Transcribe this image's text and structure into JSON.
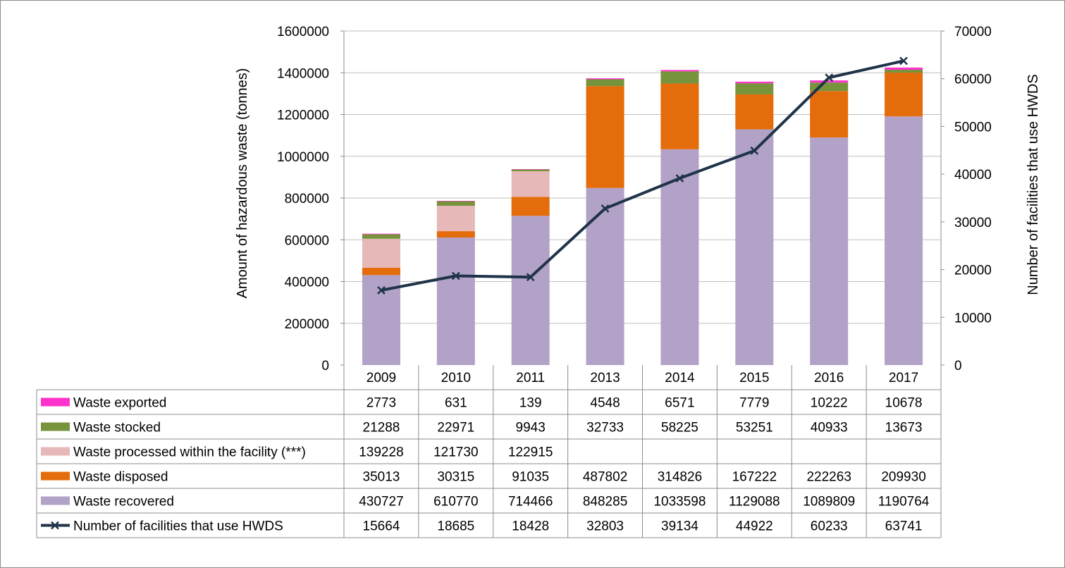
{
  "chart_data": {
    "type": "bar",
    "stacked": true,
    "categories": [
      "2009",
      "2010",
      "2011",
      "2013",
      "2014",
      "2015",
      "2016",
      "2017"
    ],
    "ylabel": "Amount of hazardous waste  (tonnes)",
    "y2label": "Number of facilities that use HWDS",
    "ylim": [
      0,
      1600000
    ],
    "y2lim": [
      0,
      70000
    ],
    "yticks": [
      "0",
      "200000",
      "400000",
      "600000",
      "800000",
      "1000000",
      "1200000",
      "1400000",
      "1600000"
    ],
    "y2ticks": [
      "0",
      "10000",
      "20000",
      "30000",
      "40000",
      "50000",
      "60000",
      "70000"
    ],
    "grid": true,
    "legend": "data-table",
    "series": [
      {
        "name": "Waste exported",
        "color": "#ff33cc",
        "values": [
          2773,
          631,
          139,
          4548,
          6571,
          7779,
          10222,
          10678
        ],
        "labels": [
          "2773",
          "631",
          "139",
          "4548",
          "6571",
          "7779",
          "10222",
          "10678"
        ]
      },
      {
        "name": "Waste stocked",
        "color": "#77933c",
        "values": [
          21288,
          22971,
          9943,
          32733,
          58225,
          53251,
          40933,
          13673
        ],
        "labels": [
          "21288",
          "22971",
          "9943",
          "32733",
          "58225",
          "53251",
          "40933",
          "13673"
        ]
      },
      {
        "name": "Waste processed within the facility (***)",
        "color": "#e6b9b8",
        "values": [
          139228,
          121730,
          122915,
          null,
          null,
          null,
          null,
          null
        ],
        "labels": [
          "139228",
          "121730",
          "122915",
          "",
          "",
          "",
          "",
          ""
        ]
      },
      {
        "name": "Waste disposed",
        "color": "#e46c0a",
        "values": [
          35013,
          30315,
          91035,
          487802,
          314826,
          167222,
          222263,
          209930
        ],
        "labels": [
          "35013",
          "30315",
          "91035",
          "487802",
          "314826",
          "167222",
          "222263",
          "209930"
        ]
      },
      {
        "name": "Waste recovered",
        "color": "#b3a2c7",
        "values": [
          430727,
          610770,
          714466,
          848285,
          1033598,
          1129088,
          1089809,
          1190764
        ],
        "labels": [
          "430727",
          "610770",
          "714466",
          "848285",
          "1033598",
          "1129088",
          "1089809",
          "1190764"
        ]
      },
      {
        "name": "Number of facilities that use HWDS",
        "type": "line",
        "axis": "secondary",
        "color": "#1f3449",
        "values": [
          15664,
          18685,
          18428,
          32803,
          39134,
          44922,
          60233,
          63741
        ],
        "labels": [
          "15664",
          "18685",
          "18428",
          "32803",
          "39134",
          "44922",
          "60233",
          "63741"
        ]
      }
    ]
  }
}
